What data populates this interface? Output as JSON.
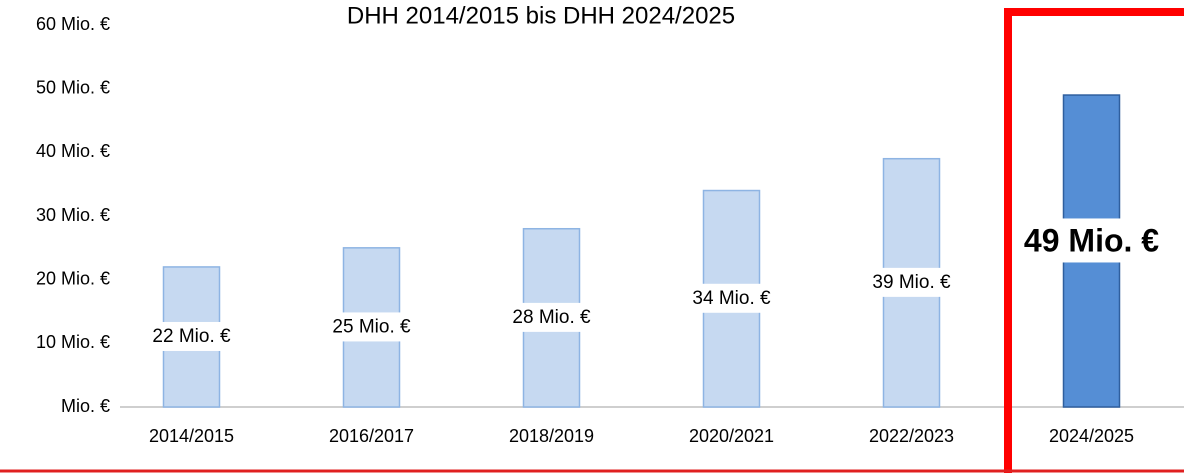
{
  "chart_data": {
    "type": "bar",
    "title": "DHH 2014/2015 bis DHH 2024/2025",
    "categories": [
      "2014/2015",
      "2016/2017",
      "2018/2019",
      "2020/2021",
      "2022/2023",
      "2024/2025"
    ],
    "values": [
      22,
      25,
      28,
      34,
      39,
      49
    ],
    "value_labels": [
      "22 Mio. €",
      "25 Mio. €",
      "28 Mio. €",
      "34 Mio. €",
      "39 Mio. €",
      "49 Mio. €"
    ],
    "colors": [
      "#c6d9f1",
      "#c6d9f1",
      "#c6d9f1",
      "#c6d9f1",
      "#c6d9f1",
      "#558ed5"
    ],
    "ylim": [
      0,
      60
    ],
    "yticks": [
      {
        "value": 0,
        "label": "Mio. €"
      },
      {
        "value": 10,
        "label": "10 Mio. €"
      },
      {
        "value": 20,
        "label": "20 Mio. €"
      },
      {
        "value": 30,
        "label": "30 Mio. €"
      },
      {
        "value": 40,
        "label": "40 Mio. €"
      },
      {
        "value": 50,
        "label": "50 Mio. €"
      },
      {
        "value": 60,
        "label": "60 Mio. €"
      }
    ],
    "grid": false
  }
}
